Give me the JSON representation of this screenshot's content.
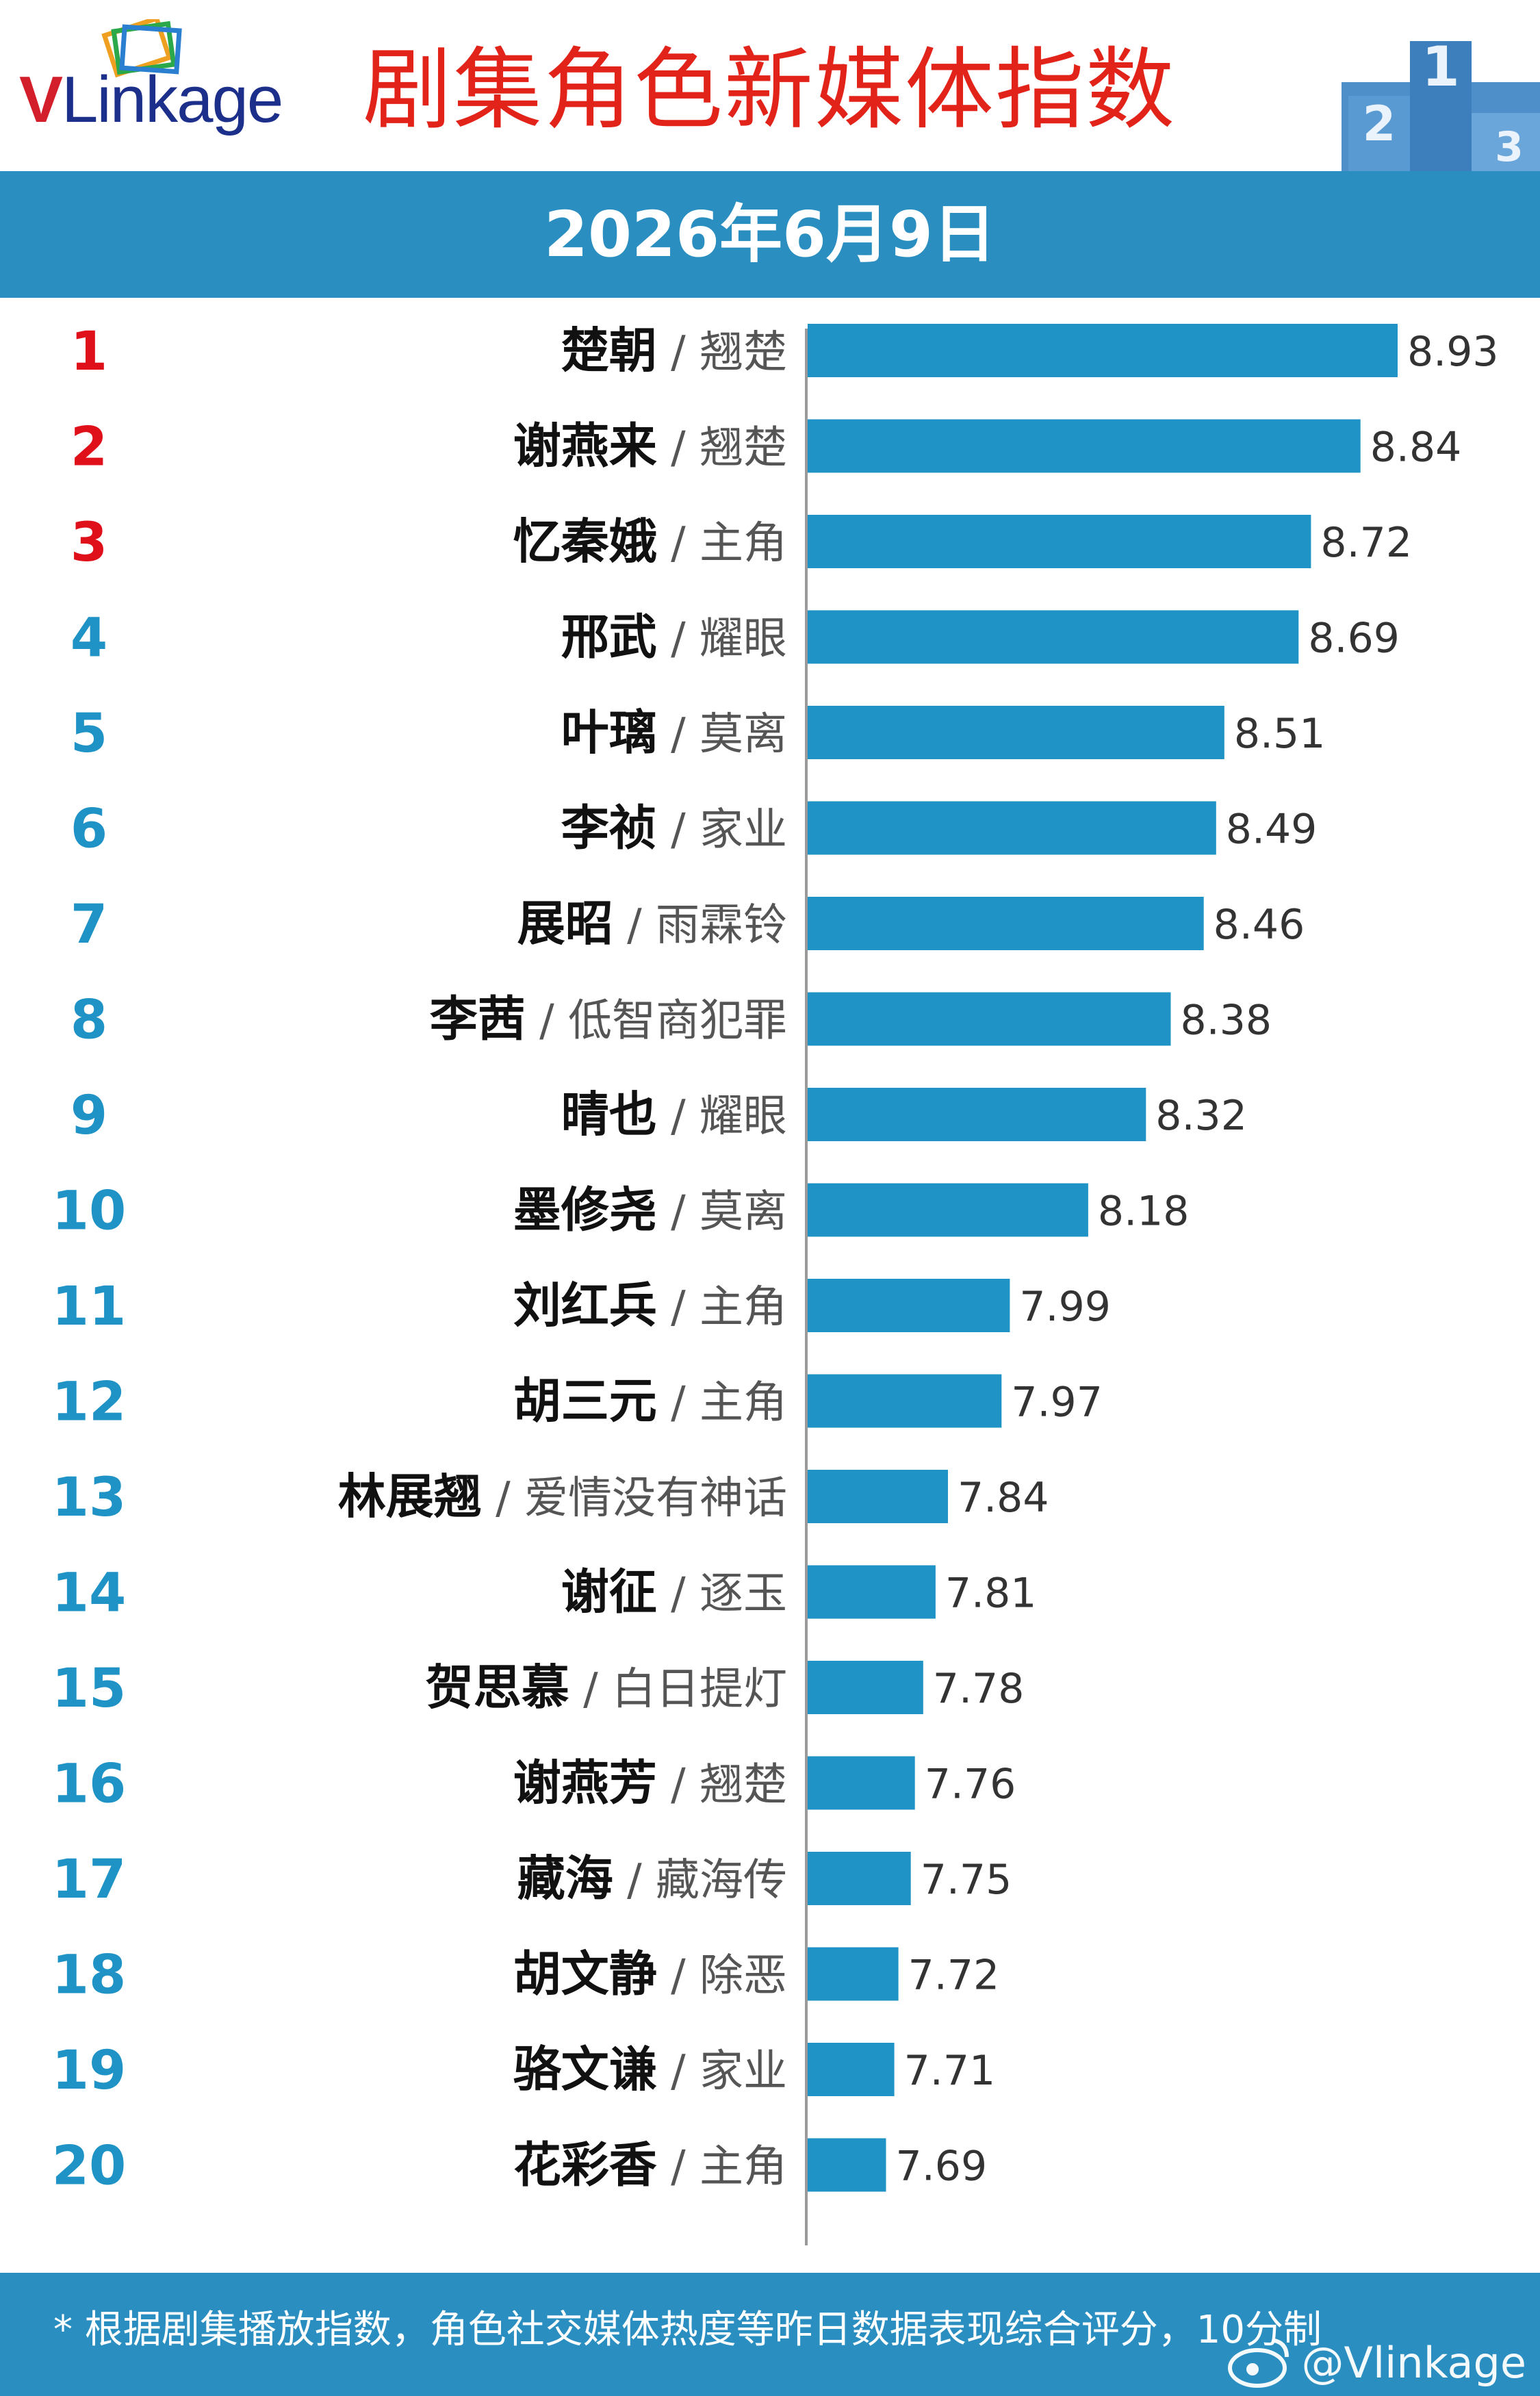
{
  "brand": {
    "logo_v": "V",
    "logo_rest": "Linkage"
  },
  "header": {
    "title": "剧集角色新媒体指数",
    "date": "2026年6月9日"
  },
  "colors": {
    "bar": "#1f93c6",
    "top3_rank": "#e0101b",
    "rank": "#1f93c6",
    "banner": "#2a8fc0",
    "title": "#e2231a"
  },
  "footer": {
    "note": "* 根据剧集播放指数，角色社交媒体热度等昨日数据表现综合评分，10分制",
    "watermark": "@Vlinkage"
  },
  "chart_data": {
    "type": "bar",
    "orientation": "horizontal",
    "title": "剧集角色新媒体指数",
    "ranks": [
      "1",
      "2",
      "3",
      "4",
      "5",
      "6",
      "7",
      "8",
      "9",
      "10",
      "11",
      "12",
      "13",
      "14",
      "15",
      "16",
      "17",
      "18",
      "19",
      "20"
    ],
    "categories": [
      "楚朝",
      "谢燕来",
      "忆秦娥",
      "邢武",
      "叶璃",
      "李祯",
      "展昭",
      "李茜",
      "晴也",
      "墨修尧",
      "刘红兵",
      "胡三元",
      "林展翘",
      "谢征",
      "贺思慕",
      "谢燕芳",
      "藏海",
      "胡文静",
      "骆文谦",
      "花彩香"
    ],
    "dramas": [
      "翘楚",
      "翘楚",
      "主角",
      "耀眼",
      "莫离",
      "家业",
      "雨霖铃",
      "低智商犯罪",
      "耀眼",
      "莫离",
      "主角",
      "主角",
      "爱情没有神话",
      "逐玉",
      "白日提灯",
      "翘楚",
      "藏海传",
      "除恶",
      "家业",
      "主角"
    ],
    "values": [
      8.93,
      8.84,
      8.72,
      8.69,
      8.51,
      8.49,
      8.46,
      8.38,
      8.32,
      8.18,
      7.99,
      7.97,
      7.84,
      7.81,
      7.78,
      7.76,
      7.75,
      7.72,
      7.71,
      7.69
    ],
    "value_labels": [
      "8.93",
      "8.84",
      "8.72",
      "8.69",
      "8.51",
      "8.49",
      "8.46",
      "8.38",
      "8.32",
      "8.18",
      "7.99",
      "7.97",
      "7.84",
      "7.81",
      "7.78",
      "7.76",
      "7.75",
      "7.72",
      "7.71",
      "7.69"
    ],
    "xlim": [
      7.5,
      8.93
    ],
    "grid": false,
    "legend": "none"
  }
}
